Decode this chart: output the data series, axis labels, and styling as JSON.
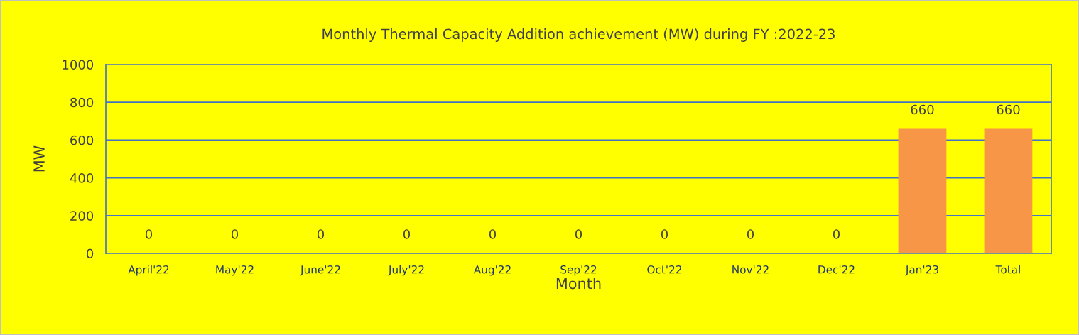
{
  "chart_data": {
    "type": "bar",
    "title": "Monthly Thermal Capacity Addition achievement (MW) during FY :2022-23",
    "xlabel": "Month",
    "ylabel": "MW",
    "categories": [
      "April'22",
      "May'22",
      "June'22",
      "July'22",
      "Aug'22",
      "Sep'22",
      "Oct'22",
      "Nov'22",
      "Dec'22",
      "Jan'23",
      "Total"
    ],
    "values": [
      0,
      0,
      0,
      0,
      0,
      0,
      0,
      0,
      0,
      660,
      660
    ],
    "color": "#f79646",
    "ylim": [
      0,
      1000
    ],
    "yticks": [
      0,
      200,
      400,
      600,
      800,
      1000
    ],
    "grid": "y",
    "data_labels": true,
    "legend": false
  }
}
